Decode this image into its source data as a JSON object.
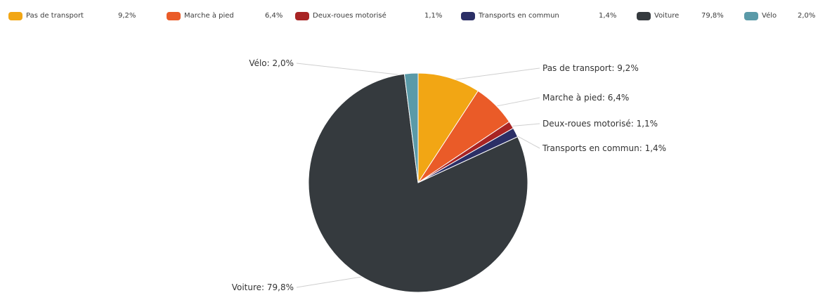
{
  "chart_data": {
    "type": "pie",
    "title": "",
    "legend_placement": "top",
    "slices": [
      {
        "name": "Pas de transport",
        "value": 9.2,
        "legend_value": "9,2%",
        "label": "Pas de transport: 9,2%",
        "color": "#f2a614"
      },
      {
        "name": "Marche à pied",
        "value": 6.4,
        "legend_value": "6,4%",
        "label": "Marche à pied: 6,4%",
        "color": "#ea5b28"
      },
      {
        "name": "Deux-roues motorisé",
        "value": 1.1,
        "legend_value": "1,1%",
        "label": "Deux-roues motorisé: 1,1%",
        "color": "#a82424"
      },
      {
        "name": "Transports en commun",
        "value": 1.4,
        "legend_value": "1,4%",
        "label": "Transports en commun: 1,4%",
        "color": "#2b2f66"
      },
      {
        "name": "Voiture",
        "value": 79.8,
        "legend_value": "79,8%",
        "label": "Voiture: 79,8%",
        "color": "#353a3e"
      },
      {
        "name": "Vélo",
        "value": 2.0,
        "legend_value": "2,0%",
        "label": "Vélo: 2,0%",
        "color": "#5a9aa8"
      }
    ]
  }
}
